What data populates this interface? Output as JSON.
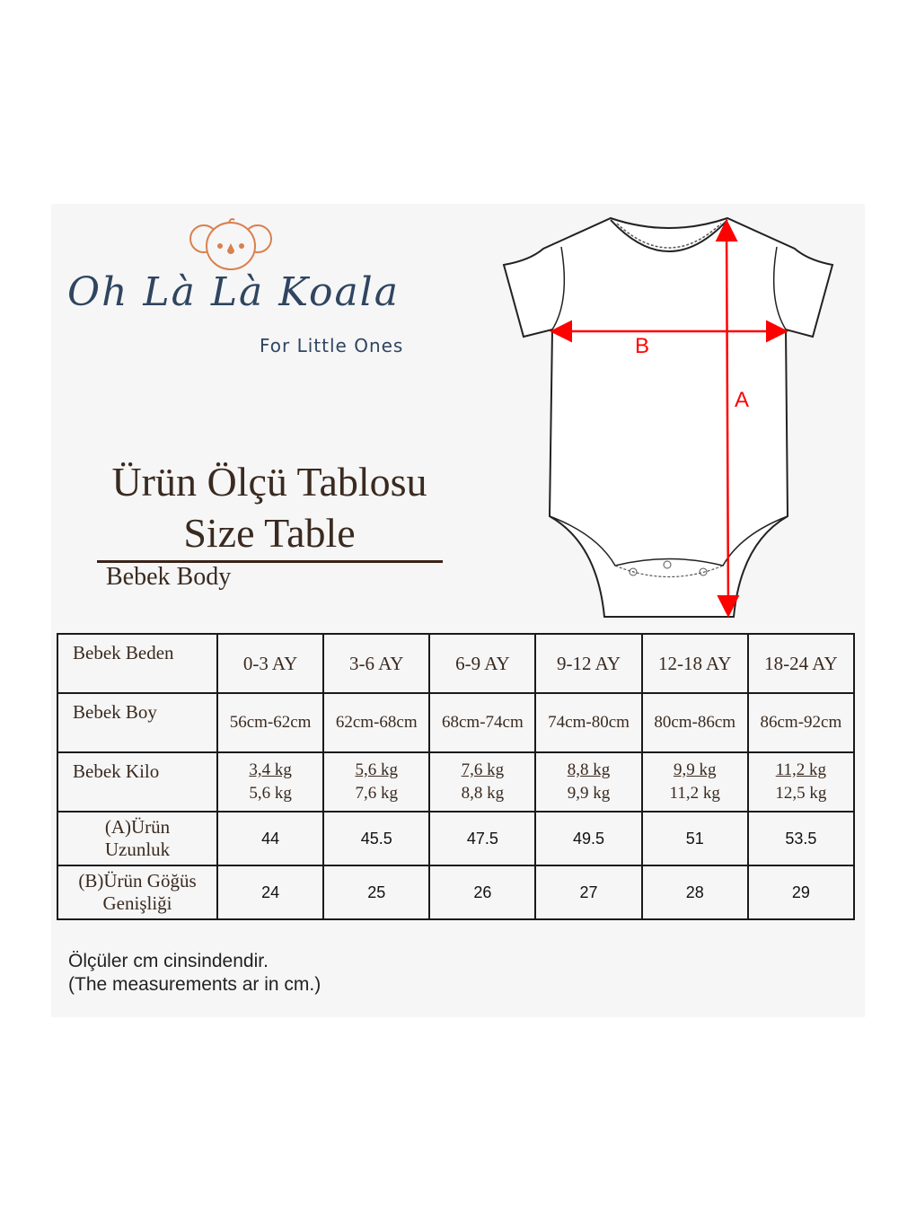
{
  "brand": {
    "name": "Oh Là Là Koala",
    "tagline": "For Little Ones",
    "logo_color": "#d9804f",
    "text_color": "#2f4560"
  },
  "title": {
    "tr": "Ürün Ölçü Tablosu",
    "en": "Size Table",
    "subtitle": "Bebek Body"
  },
  "diagram": {
    "label_b": "B",
    "label_a": "A",
    "arrow_color": "#ff0000"
  },
  "table": {
    "header": {
      "label": "Bebek Beden",
      "sizes": [
        "0-3 AY",
        "3-6 AY",
        "6-9 AY",
        "9-12 AY",
        "12-18 AY",
        "18-24 AY"
      ]
    },
    "height": {
      "label": "Bebek Boy",
      "values": [
        "56cm-62cm",
        "62cm-68cm",
        "68cm-74cm",
        "74cm-80cm",
        "80cm-86cm",
        "86cm-92cm"
      ]
    },
    "weight": {
      "label": "Bebek Kilo",
      "values": [
        [
          "3,4 kg",
          "5,6 kg"
        ],
        [
          "5,6 kg",
          "7,6 kg"
        ],
        [
          "7,6 kg",
          "8,8 kg"
        ],
        [
          "8,8 kg",
          "9,9 kg"
        ],
        [
          "9,9 kg",
          "11,2 kg"
        ],
        [
          "11,2 kg",
          "12,5 kg"
        ]
      ]
    },
    "length": {
      "label1": "(A)Ürün",
      "label2": "Uzunluk",
      "values": [
        "44",
        "45.5",
        "47.5",
        "49.5",
        "51",
        "53.5"
      ]
    },
    "chest": {
      "label1": "(B)Ürün Göğüs",
      "label2": "Genişliği",
      "values": [
        "24",
        "25",
        "26",
        "27",
        "28",
        "29"
      ]
    }
  },
  "note": {
    "line1": "Ölçüler cm cinsindendir.",
    "line2": "(The measurements ar in cm.)"
  }
}
